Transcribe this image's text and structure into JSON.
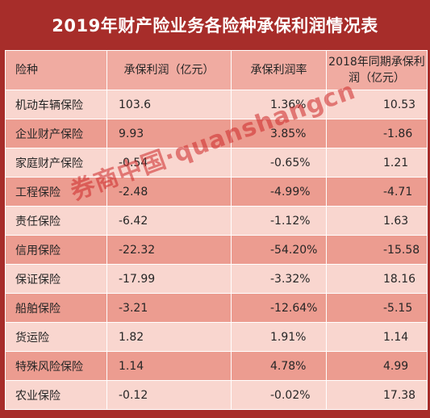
{
  "title": "2019年财产险业务各险种承保利润情况表",
  "headers": [
    "险种",
    "承保利润（亿元）",
    "承保利润率",
    "2018年同期承保利润（亿元）"
  ],
  "rows": [
    {
      "name": "机动车辆保险",
      "profit": "103.6",
      "rate": "1.36%",
      "prev": "10.53"
    },
    {
      "name": "企业财产保险",
      "profit": "9.93",
      "rate": "3.85%",
      "prev": "-1.86"
    },
    {
      "name": "家庭财产保险",
      "profit": "-0.54",
      "rate": "-0.65%",
      "prev": "1.21"
    },
    {
      "name": "工程保险",
      "profit": "-2.48",
      "rate": "-4.99%",
      "prev": "-4.71"
    },
    {
      "name": "责任保险",
      "profit": "-6.42",
      "rate": "-1.12%",
      "prev": "1.63"
    },
    {
      "name": "信用保险",
      "profit": "-22.32",
      "rate": "-54.20%",
      "prev": "-15.58"
    },
    {
      "name": "保证保险",
      "profit": "-17.99",
      "rate": "-3.32%",
      "prev": "18.16"
    },
    {
      "name": "船舶保险",
      "profit": "-3.21",
      "rate": "-12.64%",
      "prev": "-5.15"
    },
    {
      "name": "货运险",
      "profit": "1.82",
      "rate": "1.91%",
      "prev": "1.14"
    },
    {
      "name": "特殊风险保险",
      "profit": "1.14",
      "rate": "4.78%",
      "prev": "4.99"
    },
    {
      "name": "农业保险",
      "profit": "-0.12",
      "rate": "-0.02%",
      "prev": "17.38"
    }
  ],
  "watermark": "券商中国·quanshangcn",
  "colors": {
    "title_bg": "#a72d2a",
    "header_bg": "#f0aba1",
    "row_light": "#f9d6cf",
    "row_dark": "#ec9c90"
  }
}
